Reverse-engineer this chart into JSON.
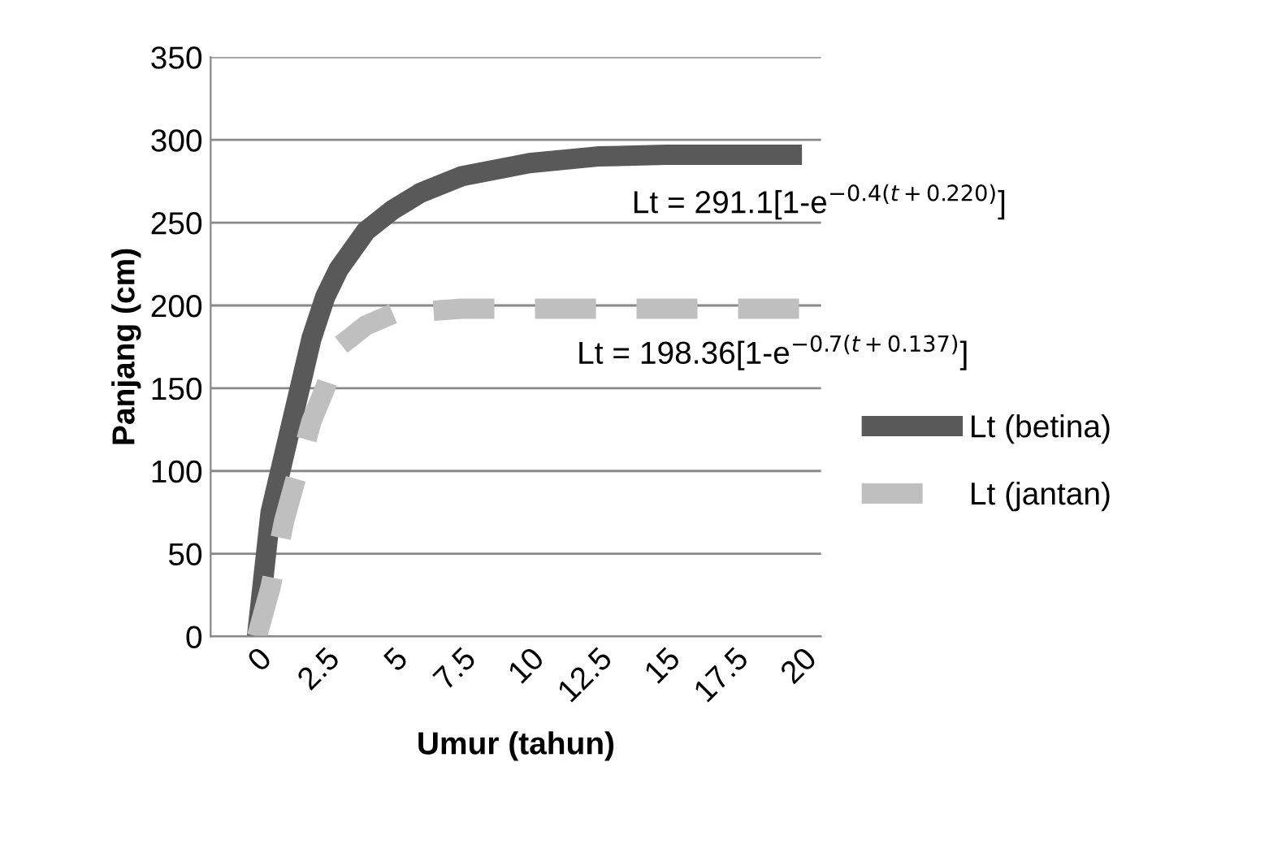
{
  "chart_data": {
    "type": "line",
    "xlabel": "Umur (tahun)",
    "ylabel": "Panjang (cm)",
    "xlim": [
      -1.7,
      20.7
    ],
    "ylim": [
      0,
      350
    ],
    "xticks": [
      0,
      2.5,
      5,
      7.5,
      10,
      12.5,
      15,
      17.5,
      20
    ],
    "yticks": [
      0,
      50,
      100,
      150,
      200,
      250,
      300,
      350
    ],
    "grid": "y",
    "legend": "right",
    "marker": "none",
    "series": [
      {
        "name": "Lt (betina)",
        "color": "#595959",
        "line_style": "solid",
        "x": [
          0,
          0.5,
          1,
          1.5,
          2,
          2.5,
          3,
          4,
          5,
          6,
          7.5,
          10,
          12.5,
          15,
          20
        ],
        "values": [
          0,
          75,
          110,
          145,
          180,
          205,
          222,
          245,
          258,
          268,
          278,
          286,
          290,
          291,
          291
        ]
      },
      {
        "name": "Lt (jantan)",
        "color": "#bfbfbf",
        "line_style": "dashed",
        "x": [
          0,
          0.5,
          1,
          1.5,
          2,
          2.5,
          3,
          4,
          5,
          7.5,
          10,
          15,
          20
        ],
        "values": [
          0,
          30,
          70,
          100,
          130,
          150,
          175,
          188,
          195,
          198,
          198,
          198,
          198
        ]
      }
    ],
    "annotations": [
      "Lt = 291.1[1-e$^{−0.4(t+0.220)}$]",
      "Lt = 198.36[1-e$^{−0.7(t+0.137)}$]"
    ]
  }
}
